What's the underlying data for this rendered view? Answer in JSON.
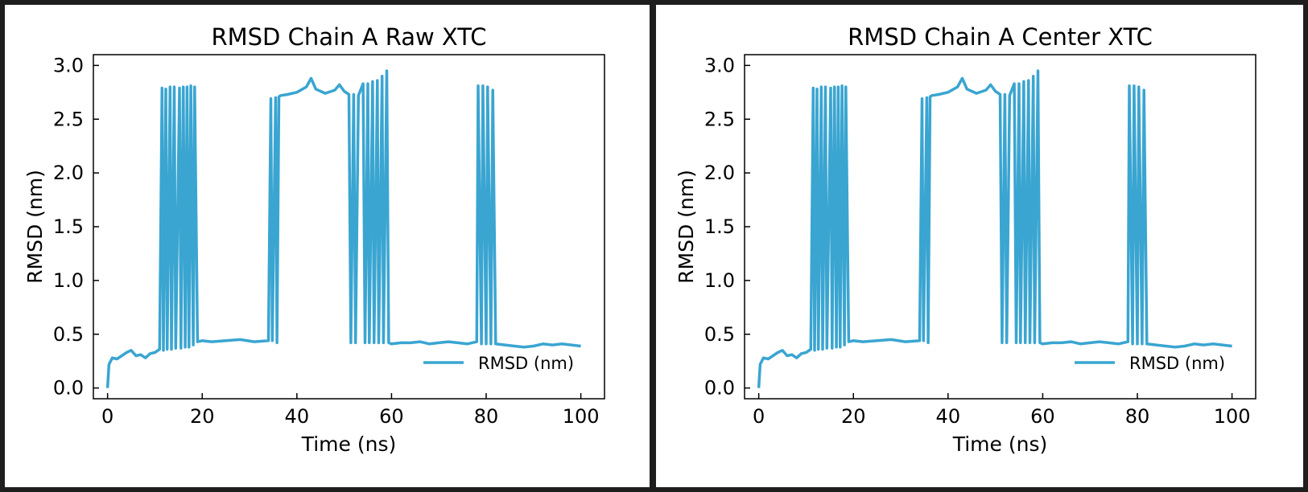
{
  "chart_data": [
    {
      "type": "line",
      "title": "RMSD Chain A Raw XTC",
      "xlabel": "Time (ns)",
      "ylabel": "RMSD (nm)",
      "xlim": [
        -3,
        105
      ],
      "ylim": [
        -0.1,
        3.1
      ],
      "xticks": [
        "0",
        "20",
        "40",
        "60",
        "80",
        "100"
      ],
      "yticks": [
        "0.0",
        "0.5",
        "1.0",
        "1.5",
        "2.0",
        "2.5",
        "3.0"
      ],
      "legend": {
        "position": "lower-right",
        "label": "RMSD (nm)"
      },
      "grid": false,
      "color": "#3aa5d1",
      "series": [
        {
          "name": "RMSD (nm)",
          "x": [
            0,
            0.3,
            1,
            2,
            3,
            4,
            5,
            6,
            7,
            8,
            9,
            10,
            11,
            11.5,
            11.8,
            12.3,
            12.6,
            13.2,
            13.5,
            14.1,
            14.4,
            15.2,
            15.5,
            16,
            16.4,
            16.8,
            17.2,
            17.6,
            18.1,
            18.4,
            19,
            20,
            22,
            25,
            28,
            31,
            34,
            34.5,
            34.8,
            35.5,
            35.8,
            36.2,
            36.6,
            38,
            40,
            42,
            43,
            44,
            46,
            48,
            49,
            50,
            51,
            51.4,
            52,
            52.4,
            53,
            54,
            54.4,
            55,
            55.3,
            56,
            56.3,
            57,
            57.3,
            58,
            58.3,
            59,
            59.4,
            60,
            62,
            64,
            66,
            68,
            70,
            72,
            74,
            76,
            78,
            78.3,
            79,
            79.3,
            80,
            80.3,
            81,
            81.4,
            82,
            84,
            86,
            88,
            90,
            92,
            94,
            96,
            98,
            100
          ],
          "y": [
            0,
            0.22,
            0.28,
            0.27,
            0.3,
            0.33,
            0.35,
            0.3,
            0.31,
            0.28,
            0.32,
            0.33,
            0.36,
            2.79,
            0.35,
            2.78,
            0.36,
            2.8,
            0.36,
            2.8,
            0.37,
            2.79,
            0.37,
            2.8,
            0.38,
            2.8,
            0.38,
            2.81,
            0.4,
            2.8,
            0.43,
            0.44,
            0.43,
            0.44,
            0.45,
            0.43,
            0.44,
            2.69,
            0.44,
            2.7,
            0.42,
            2.71,
            2.72,
            2.73,
            2.75,
            2.8,
            2.88,
            2.78,
            2.74,
            2.77,
            2.82,
            2.76,
            2.73,
            0.42,
            2.73,
            0.42,
            2.72,
            2.83,
            0.42,
            2.83,
            0.42,
            2.85,
            0.42,
            2.86,
            0.42,
            2.9,
            0.42,
            2.95,
            0.42,
            0.41,
            0.42,
            0.42,
            0.43,
            0.41,
            0.42,
            0.43,
            0.42,
            0.41,
            0.43,
            2.81,
            0.41,
            2.81,
            0.41,
            2.8,
            0.41,
            2.77,
            0.41,
            0.4,
            0.39,
            0.38,
            0.39,
            0.41,
            0.4,
            0.41,
            0.4,
            0.39
          ]
        }
      ]
    },
    {
      "type": "line",
      "title": "RMSD Chain A Center XTC",
      "xlabel": "Time (ns)",
      "ylabel": "RMSD (nm)",
      "xlim": [
        -3,
        105
      ],
      "ylim": [
        -0.1,
        3.1
      ],
      "xticks": [
        "0",
        "20",
        "40",
        "60",
        "80",
        "100"
      ],
      "yticks": [
        "0.0",
        "0.5",
        "1.0",
        "1.5",
        "2.0",
        "2.5",
        "3.0"
      ],
      "legend": {
        "position": "lower-right",
        "label": "RMSD (nm)"
      },
      "grid": false,
      "color": "#3aa5d1",
      "series": [
        {
          "name": "RMSD (nm)",
          "x": [
            0,
            0.3,
            1,
            2,
            3,
            4,
            5,
            6,
            7,
            8,
            9,
            10,
            11,
            11.5,
            11.8,
            12.3,
            12.6,
            13.2,
            13.5,
            14.1,
            14.4,
            15.2,
            15.5,
            16,
            16.4,
            16.8,
            17.2,
            17.6,
            18.1,
            18.4,
            19,
            20,
            22,
            25,
            28,
            31,
            34,
            34.5,
            34.8,
            35.5,
            35.8,
            36.2,
            36.6,
            38,
            40,
            42,
            43,
            44,
            46,
            48,
            49,
            50,
            51,
            51.4,
            52,
            52.4,
            53,
            54,
            54.4,
            55,
            55.3,
            56,
            56.3,
            57,
            57.3,
            58,
            58.3,
            59,
            59.4,
            60,
            62,
            64,
            66,
            68,
            70,
            72,
            74,
            76,
            78,
            78.3,
            79,
            79.3,
            80,
            80.3,
            81,
            81.4,
            82,
            84,
            86,
            88,
            90,
            92,
            94,
            96,
            98,
            100
          ],
          "y": [
            0,
            0.22,
            0.28,
            0.27,
            0.3,
            0.33,
            0.35,
            0.3,
            0.31,
            0.28,
            0.32,
            0.33,
            0.36,
            2.79,
            0.35,
            2.78,
            0.36,
            2.8,
            0.36,
            2.8,
            0.37,
            2.79,
            0.37,
            2.8,
            0.38,
            2.8,
            0.38,
            2.81,
            0.4,
            2.8,
            0.43,
            0.44,
            0.43,
            0.44,
            0.45,
            0.43,
            0.44,
            2.69,
            0.44,
            2.7,
            0.42,
            2.71,
            2.72,
            2.73,
            2.75,
            2.8,
            2.88,
            2.78,
            2.74,
            2.77,
            2.82,
            2.76,
            2.73,
            0.42,
            2.73,
            0.42,
            2.72,
            2.83,
            0.42,
            2.83,
            0.42,
            2.85,
            0.42,
            2.86,
            0.42,
            2.9,
            0.42,
            2.95,
            0.42,
            0.41,
            0.42,
            0.42,
            0.43,
            0.41,
            0.42,
            0.43,
            0.42,
            0.41,
            0.43,
            2.81,
            0.41,
            2.81,
            0.41,
            2.8,
            0.41,
            2.77,
            0.41,
            0.4,
            0.39,
            0.38,
            0.39,
            0.41,
            0.4,
            0.41,
            0.4,
            0.39
          ]
        }
      ]
    }
  ]
}
